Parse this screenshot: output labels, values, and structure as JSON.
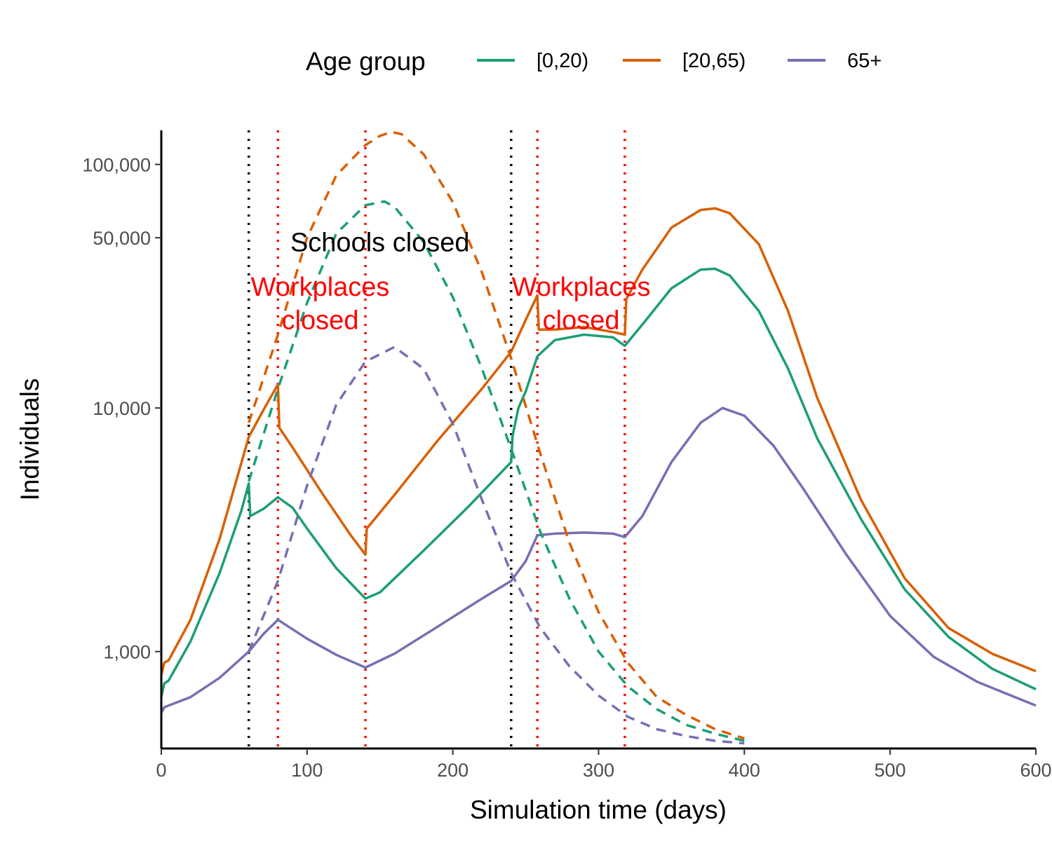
{
  "chart_data": {
    "type": "line",
    "title": "",
    "xlabel": "Simulation time (days)",
    "ylabel": "Individuals",
    "xlim": [
      0,
      600
    ],
    "ylim": [
      400,
      138000
    ],
    "yscale": "log",
    "xticks": [
      0,
      100,
      200,
      300,
      400,
      500,
      600
    ],
    "xtick_labels": [
      "0",
      "100",
      "200",
      "300",
      "400",
      "500",
      "600"
    ],
    "yticks": [
      1000,
      10000,
      50000,
      100000
    ],
    "ytick_labels": [
      "1,000",
      "10,000",
      "50,000",
      "100,000"
    ],
    "legend": {
      "title": "Age group",
      "position": "top",
      "entries": [
        {
          "label": "[0,20)",
          "color": "#1B9E77"
        },
        {
          "label": "[20,65)",
          "color": "#D95F02"
        },
        {
          "label": "65+",
          "color": "#7570B3"
        }
      ]
    },
    "vlines": [
      {
        "x": 60,
        "color": "#000000",
        "style": "dotted"
      },
      {
        "x": 80,
        "color": "#FF0000",
        "style": "dotted"
      },
      {
        "x": 140,
        "color": "#FF0000",
        "style": "dotted"
      },
      {
        "x": 240,
        "color": "#000000",
        "style": "dotted"
      },
      {
        "x": 258,
        "color": "#FF0000",
        "style": "dotted"
      },
      {
        "x": 318,
        "color": "#FF0000",
        "style": "dotted"
      }
    ],
    "annotations": [
      {
        "text": "Schools closed",
        "x": 150,
        "y": 48000,
        "color": "#000000"
      },
      {
        "text": "Workplaces",
        "x": 109,
        "y": 31500,
        "color": "#FF0000"
      },
      {
        "text": "closed",
        "x": 109,
        "y": 23000,
        "color": "#FF0000"
      },
      {
        "text": "Workplaces",
        "x": 288,
        "y": 31500,
        "color": "#FF0000"
      },
      {
        "text": "closed",
        "x": 288,
        "y": 23000,
        "color": "#FF0000"
      }
    ],
    "series": [
      {
        "name": "[0,20)",
        "scenario": "intervention",
        "dash": "solid",
        "color": "#1B9E77",
        "x": [
          0,
          2,
          5,
          20,
          40,
          55,
          60,
          61,
          70,
          80,
          90,
          100,
          120,
          140,
          150,
          180,
          210,
          240,
          241,
          245,
          250,
          258,
          270,
          290,
          310,
          318,
          330,
          350,
          370,
          380,
          390,
          410,
          430,
          450,
          480,
          510,
          540,
          570,
          600
        ],
        "y": [
          650,
          740,
          760,
          1100,
          2100,
          3800,
          4900,
          3600,
          3850,
          4300,
          3900,
          3200,
          2200,
          1650,
          1750,
          2600,
          3900,
          6000,
          7700,
          10000,
          11700,
          16300,
          19000,
          20000,
          19500,
          18000,
          22000,
          31000,
          37000,
          37300,
          35000,
          25000,
          14500,
          7500,
          3500,
          1800,
          1150,
          850,
          700
        ]
      },
      {
        "name": "[20,65)",
        "scenario": "intervention",
        "dash": "solid",
        "color": "#D95F02",
        "x": [
          0,
          2,
          5,
          20,
          40,
          60,
          70,
          80,
          81,
          90,
          110,
          130,
          140,
          141,
          160,
          190,
          220,
          240,
          250,
          258,
          259,
          270,
          290,
          310,
          318,
          319,
          330,
          350,
          370,
          380,
          390,
          410,
          430,
          450,
          480,
          510,
          540,
          570,
          600
        ],
        "y": [
          800,
          900,
          920,
          1350,
          2900,
          7600,
          9800,
          12500,
          8300,
          6900,
          4500,
          3000,
          2500,
          3200,
          4400,
          7400,
          12000,
          17000,
          23000,
          29000,
          21000,
          21000,
          21500,
          20500,
          20000,
          28000,
          37000,
          55000,
          65000,
          66000,
          63000,
          47000,
          25000,
          11000,
          4200,
          2000,
          1250,
          980,
          830
        ]
      },
      {
        "name": "65+",
        "scenario": "intervention",
        "dash": "solid",
        "color": "#7570B3",
        "x": [
          0,
          2,
          5,
          20,
          40,
          60,
          70,
          80,
          100,
          120,
          140,
          160,
          190,
          220,
          240,
          250,
          258,
          270,
          290,
          310,
          318,
          330,
          350,
          370,
          385,
          400,
          420,
          440,
          470,
          500,
          530,
          560,
          600
        ],
        "y": [
          560,
          590,
          600,
          650,
          780,
          1000,
          1180,
          1350,
          1130,
          970,
          860,
          980,
          1270,
          1650,
          1950,
          2350,
          3000,
          3050,
          3080,
          3050,
          2950,
          3600,
          6000,
          8700,
          10000,
          9300,
          7000,
          4700,
          2500,
          1400,
          950,
          750,
          600
        ]
      },
      {
        "name": "[0,20)",
        "scenario": "no intervention",
        "dash": "dashed",
        "color": "#1B9E77",
        "x": [
          60,
          80,
          100,
          120,
          140,
          153,
          160,
          180,
          200,
          220,
          240,
          260,
          280,
          300,
          320,
          340,
          360,
          380,
          400
        ],
        "y": [
          5000,
          12000,
          27000,
          52000,
          68000,
          70500,
          67000,
          48000,
          28500,
          14500,
          6800,
          3100,
          1650,
          1000,
          720,
          580,
          500,
          460,
          430
        ]
      },
      {
        "name": "[20,65)",
        "scenario": "no intervention",
        "dash": "dashed",
        "color": "#D95F02",
        "x": [
          60,
          80,
          100,
          120,
          140,
          150,
          158,
          165,
          180,
          200,
          220,
          240,
          260,
          280,
          300,
          320,
          340,
          360,
          380,
          400
        ],
        "y": [
          8700,
          20000,
          50000,
          90000,
          120000,
          131000,
          136000,
          133000,
          110000,
          70000,
          36000,
          16000,
          6500,
          2800,
          1450,
          900,
          650,
          550,
          480,
          440
        ]
      },
      {
        "name": "65+",
        "scenario": "no intervention",
        "dash": "dashed",
        "color": "#7570B3",
        "x": [
          60,
          80,
          100,
          120,
          140,
          160,
          180,
          200,
          220,
          240,
          260,
          280,
          300,
          320,
          340,
          360,
          380,
          400
        ],
        "y": [
          1000,
          1950,
          4800,
          10300,
          15500,
          17800,
          14500,
          8600,
          4200,
          2100,
          1250,
          870,
          660,
          540,
          480,
          450,
          430,
          420
        ]
      }
    ]
  }
}
